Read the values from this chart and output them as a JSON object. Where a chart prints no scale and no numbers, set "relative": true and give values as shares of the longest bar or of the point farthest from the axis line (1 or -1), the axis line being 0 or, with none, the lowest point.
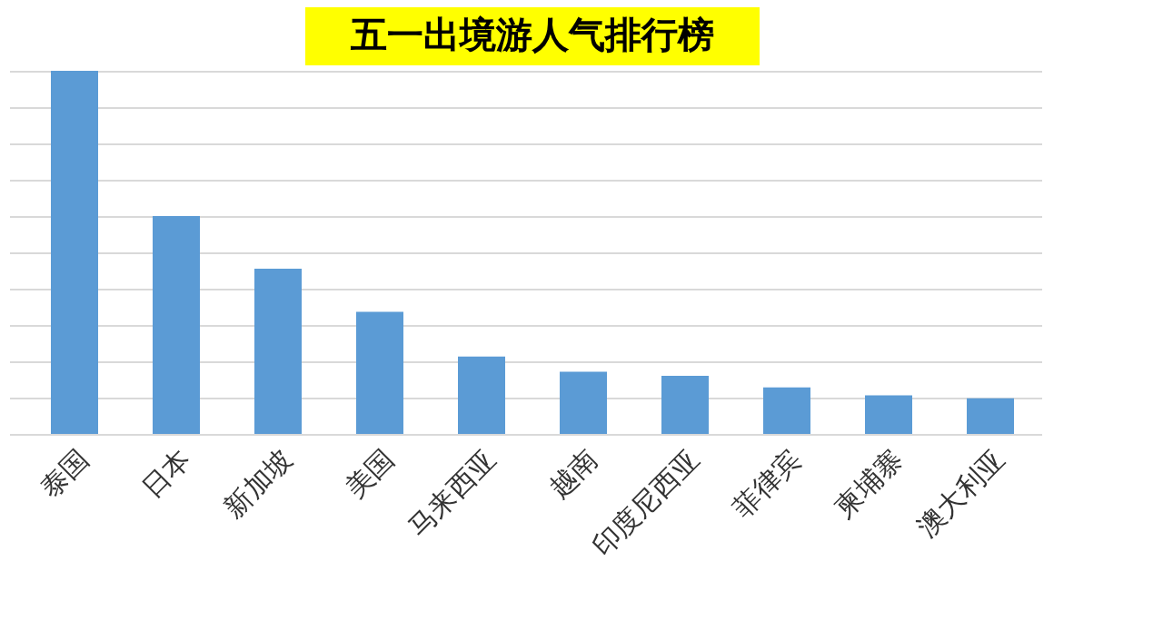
{
  "chart_data": {
    "type": "bar",
    "title": "五一出境游人气排行榜",
    "relative": true,
    "grid": "y",
    "color": "#5b9bd5",
    "categories": [
      "泰国",
      "日本",
      "新加坡",
      "美国",
      "马来西亚",
      "越南",
      "印度尼西亚",
      "菲律宾",
      "柬埔寨",
      "澳大利亚"
    ],
    "values": [
      1,
      0.6,
      0.455,
      0.336,
      0.213,
      0.171,
      0.16,
      0.128,
      0.106,
      0.098
    ]
  }
}
